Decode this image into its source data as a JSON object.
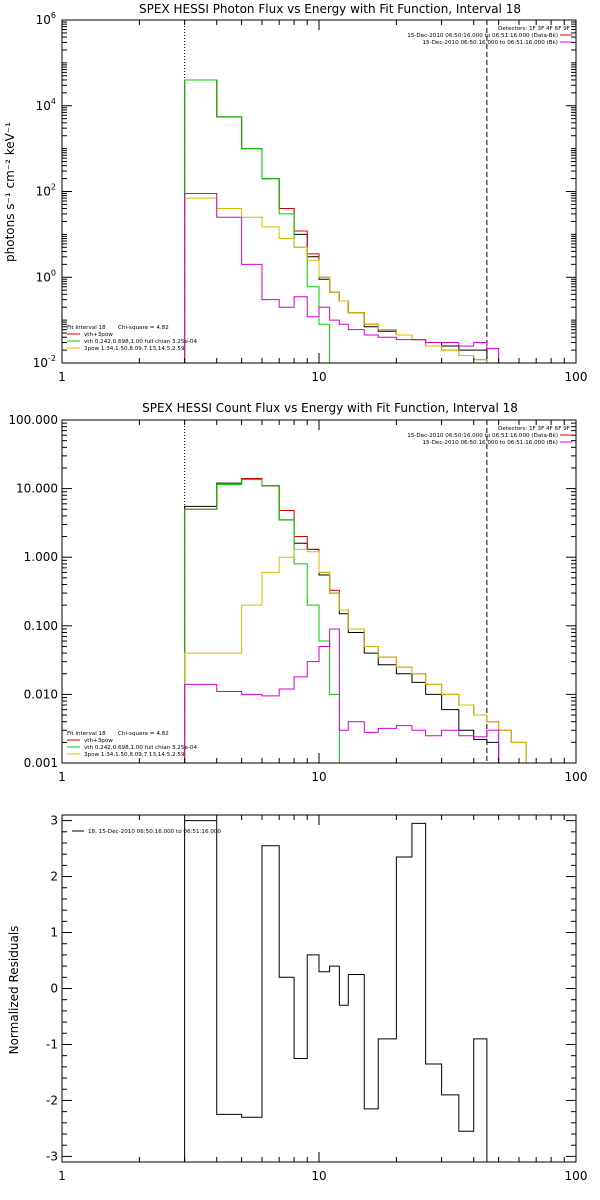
{
  "chart_data": [
    {
      "type": "line",
      "id": "photon-flux",
      "title": "SPEX HESSI Photon Flux vs Energy with Fit Function, Interval 18",
      "xlabel": "",
      "ylabel": "photons s⁻¹ cm⁻² keV⁻¹",
      "x_scale": "log",
      "y_scale": "log",
      "xlim": [
        1,
        100
      ],
      "ylim": [
        0.01,
        1000000
      ],
      "x_ticks": [
        1,
        10,
        100
      ],
      "x_tick_labels": [
        "1",
        "10",
        "100"
      ],
      "y_ticks": [
        0.01,
        1,
        100,
        10000,
        1000000
      ],
      "y_tick_labels": [
        {
          "base": "10",
          "exp": "-2"
        },
        {
          "base": "10",
          "exp": "0"
        },
        {
          "base": "10",
          "exp": "2"
        },
        {
          "base": "10",
          "exp": "4"
        },
        {
          "base": "10",
          "exp": "6"
        }
      ],
      "vlines": [
        {
          "x": 3.0,
          "style": "dotted"
        },
        {
          "x": 45.0,
          "style": "dashed"
        }
      ],
      "header": {
        "detectors": "Detectors: 1F 3F 4F 6F 9F",
        "lines": [
          {
            "text": "15-Dec-2010 06:50:16.000 to 06:51:16.000 (Data-Bk)",
            "color": "#d40000"
          },
          {
            "text": "15-Dec-2010 06:50:16.000 to 06:51:16.000 (Bk)",
            "color": "#d400d4"
          }
        ]
      },
      "fit_info": {
        "interval": "Fit Interval 18",
        "chi": "Chi-square = 4.82",
        "components": [
          {
            "text": "vth+3pow",
            "color": "#d40000"
          },
          {
            "text": "vth 0.242,0.698,1.00  full chian 3.25e-04",
            "color": "#00cc00"
          },
          {
            "text": "3pow 1.34,1.50,8.09,7.13,14.5,2.59",
            "color": "#d4c000"
          }
        ]
      },
      "edges": [
        3.0,
        4.0,
        5.0,
        6.0,
        7.0,
        8.0,
        9.0,
        10.0,
        11.0,
        12.0,
        13.0,
        15.0,
        17.0,
        20.0,
        23.0,
        26.0,
        30.0,
        35.0,
        40.0,
        45.0,
        50.0,
        56.0
      ],
      "series": [
        {
          "name": "Data-Bk",
          "color": "#000000",
          "values": [
            40000,
            5500,
            1000,
            200,
            40,
            10,
            3.0,
            0.9,
            0.45,
            0.28,
            0.15,
            0.07,
            0.055,
            0.045,
            0.035,
            0.03,
            0.025,
            0.02,
            0.02,
            null,
            null
          ]
        },
        {
          "name": "vth+3pow",
          "color": "#d40000",
          "values": [
            40000,
            5500,
            1000,
            200,
            40,
            12,
            3.5,
            1.0,
            0.45,
            0.28,
            0.15,
            0.08,
            0.06,
            0.045,
            0.035,
            0.025,
            0.02,
            0.015,
            0.012,
            null,
            null
          ]
        },
        {
          "name": "vth",
          "color": "#00cc00",
          "values": [
            40000,
            5500,
            1000,
            200,
            30,
            5,
            0.6,
            0.08,
            0.01,
            null,
            null,
            null,
            null,
            null,
            null,
            null,
            null,
            null,
            null,
            null,
            null
          ]
        },
        {
          "name": "3pow",
          "color": "#d4c000",
          "values": [
            70,
            40,
            25,
            15,
            8,
            5,
            2.5,
            1.0,
            0.45,
            0.28,
            0.15,
            0.08,
            0.06,
            0.045,
            0.035,
            0.025,
            0.02,
            0.015,
            0.012,
            0.01,
            0.008
          ]
        },
        {
          "name": "Bk",
          "color": "#d400d4",
          "values": [
            90,
            25,
            2.0,
            0.3,
            0.2,
            0.35,
            0.12,
            0.2,
            0.1,
            0.08,
            0.06,
            0.045,
            0.04,
            0.035,
            0.035,
            0.03,
            0.03,
            0.025,
            0.03,
            0.022,
            null
          ]
        }
      ]
    },
    {
      "type": "line",
      "id": "count-flux",
      "title": "SPEX HESSI Count Flux vs Energy with Fit Function, Interval 18",
      "xlabel": "",
      "ylabel": "",
      "x_scale": "log",
      "y_scale": "log",
      "xlim": [
        1,
        100
      ],
      "ylim": [
        0.001,
        100
      ],
      "x_ticks": [
        1,
        10,
        100
      ],
      "x_tick_labels": [
        "1",
        "10",
        "100"
      ],
      "y_ticks": [
        0.001,
        0.01,
        0.1,
        1,
        10,
        100
      ],
      "y_tick_labels": [
        "0.001",
        "0.010",
        "0.100",
        "1.000",
        "10.000",
        "100.000"
      ],
      "vlines": [
        {
          "x": 3.0,
          "style": "dotted"
        },
        {
          "x": 45.0,
          "style": "dashed"
        }
      ],
      "header": {
        "detectors": "Detectors: 1F 3F 4F 6F 9F",
        "lines": [
          {
            "text": "15-Dec-2010 06:50:16.000 to 06:51:16.000 (Data-Bk)",
            "color": "#d40000"
          },
          {
            "text": "15-Dec-2010 06:50:16.000 to 06:51:16.000 (Bk)",
            "color": "#d400d4"
          }
        ]
      },
      "fit_info": {
        "interval": "Fit Interval 18",
        "chi": "Chi-square = 4.82",
        "components": [
          {
            "text": "vth+3pow",
            "color": "#d40000"
          },
          {
            "text": "vth 0.242,0.698,1.00  full chian 3.25e-04",
            "color": "#00cc00"
          },
          {
            "text": "3pow 1.34,1.50,8.09,7.13,14.5,2.59",
            "color": "#d4c000"
          }
        ]
      },
      "edges": [
        3.0,
        4.0,
        5.0,
        6.0,
        7.0,
        8.0,
        9.0,
        10.0,
        11.0,
        12.0,
        13.0,
        15.0,
        17.0,
        20.0,
        23.0,
        26.0,
        30.0,
        35.0,
        40.0,
        45.0,
        50.0,
        56.0,
        64.0
      ],
      "series": [
        {
          "name": "Data-Bk",
          "color": "#000000",
          "values": [
            5.5,
            12.0,
            14.0,
            11.0,
            3.5,
            1.6,
            1.3,
            0.55,
            0.3,
            0.15,
            0.08,
            0.04,
            0.027,
            0.02,
            0.015,
            0.01,
            0.006,
            0.003,
            0.0022,
            0.002,
            null,
            null
          ]
        },
        {
          "name": "vth+3pow",
          "color": "#d40000",
          "values": [
            5.0,
            11.5,
            14.0,
            11.0,
            4.8,
            2.0,
            1.3,
            0.6,
            0.33,
            0.17,
            0.09,
            0.05,
            0.035,
            0.025,
            0.02,
            0.014,
            0.01,
            0.007,
            0.005,
            0.004,
            0.003,
            0.002
          ]
        },
        {
          "name": "vth",
          "color": "#00cc00",
          "values": [
            5.0,
            11.5,
            13.5,
            11.0,
            3.5,
            0.8,
            0.2,
            0.06,
            0.01,
            0.001,
            null,
            null,
            null,
            null,
            null,
            null,
            null,
            null,
            null,
            null,
            null,
            null
          ]
        },
        {
          "name": "3pow",
          "color": "#d4c000",
          "values": [
            0.04,
            0.04,
            0.2,
            0.6,
            1.0,
            1.3,
            1.2,
            0.6,
            0.3,
            0.17,
            0.09,
            0.05,
            0.035,
            0.025,
            0.02,
            0.014,
            0.01,
            0.007,
            0.005,
            0.004,
            0.003,
            0.002
          ]
        },
        {
          "name": "Bk",
          "color": "#d400d4",
          "values": [
            0.014,
            0.011,
            0.01,
            0.0095,
            0.012,
            0.018,
            0.03,
            0.05,
            0.09,
            0.003,
            0.004,
            0.0028,
            0.0032,
            0.0035,
            0.003,
            0.0025,
            0.003,
            0.0025,
            0.0024,
            0.003,
            null,
            null
          ]
        }
      ]
    },
    {
      "type": "line",
      "id": "residuals",
      "title": "",
      "xlabel": "",
      "ylabel": "Normalized Residuals",
      "x_scale": "log",
      "y_scale": "linear",
      "xlim": [
        1,
        100
      ],
      "ylim": [
        -3.1,
        3.1
      ],
      "x_ticks": [
        1,
        10,
        100
      ],
      "x_tick_labels": [
        "1",
        "10",
        "100"
      ],
      "y_ticks": [
        -3,
        -2,
        -1,
        0,
        1,
        2,
        3
      ],
      "y_tick_labels": [
        "-3",
        "-2",
        "-1",
        "0",
        "1",
        "2",
        "3"
      ],
      "legend": {
        "label": "18, 15-Dec-2010 06:50:16.000 to 06:51:16.000",
        "color": "#000000",
        "position": "top-left"
      },
      "edges": [
        3.0,
        4.0,
        5.0,
        6.0,
        7.0,
        8.0,
        9.0,
        10.0,
        11.0,
        12.0,
        13.0,
        15.0,
        17.0,
        20.0,
        23.0,
        26.0,
        30.0,
        35.0,
        40.0,
        45.0
      ],
      "series": [
        {
          "name": "",
          "color": "#000000",
          "values": [
            3.0,
            -2.25,
            -2.3,
            2.55,
            0.2,
            -1.25,
            0.6,
            0.3,
            0.4,
            -0.3,
            0.25,
            -2.15,
            -0.9,
            2.35,
            2.95,
            -1.35,
            -1.9,
            -2.55,
            -0.9
          ]
        }
      ]
    }
  ]
}
